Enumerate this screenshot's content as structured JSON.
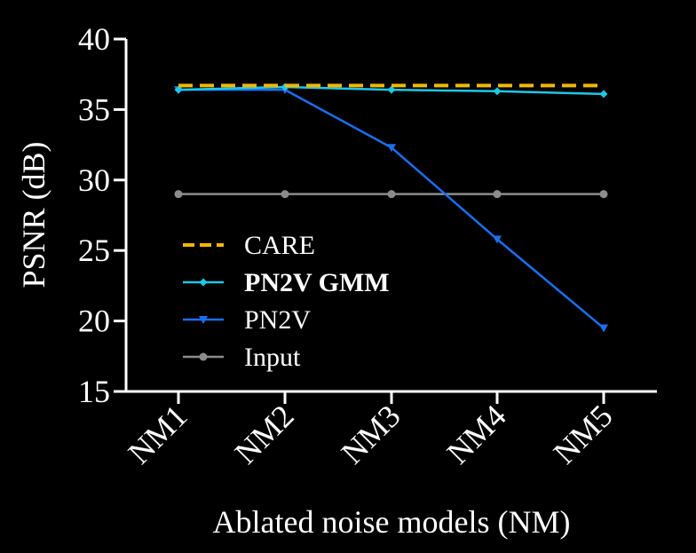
{
  "chart_data": {
    "type": "line",
    "categories": [
      "NM1",
      "NM2",
      "NM3",
      "NM4",
      "NM5"
    ],
    "xlabel": "Ablated noise models (NM)",
    "ylabel": "PSNR (dB)",
    "ylim": [
      15,
      40
    ],
    "yticks": [
      15,
      20,
      25,
      30,
      35,
      40
    ],
    "grid": false,
    "legend_position": "left-center",
    "series": [
      {
        "name": "CARE",
        "values": [
          36.7,
          36.7,
          36.7,
          36.7,
          36.7
        ],
        "color": "#f2b705",
        "style": "dashed",
        "marker": "none",
        "bold": false
      },
      {
        "name": "PN2V GMM",
        "values": [
          36.4,
          36.6,
          36.4,
          36.3,
          36.1
        ],
        "color": "#1ec8e6",
        "style": "solid",
        "marker": "diamond",
        "bold": true
      },
      {
        "name": "PN2V",
        "values": [
          36.4,
          36.4,
          32.3,
          25.8,
          19.5
        ],
        "color": "#1a6ff0",
        "style": "solid",
        "marker": "triangle-down",
        "bold": false
      },
      {
        "name": "Input",
        "values": [
          29.0,
          29.0,
          29.0,
          29.0,
          29.0
        ],
        "color": "#8c8c8c",
        "style": "solid",
        "marker": "circle",
        "bold": false
      }
    ]
  }
}
